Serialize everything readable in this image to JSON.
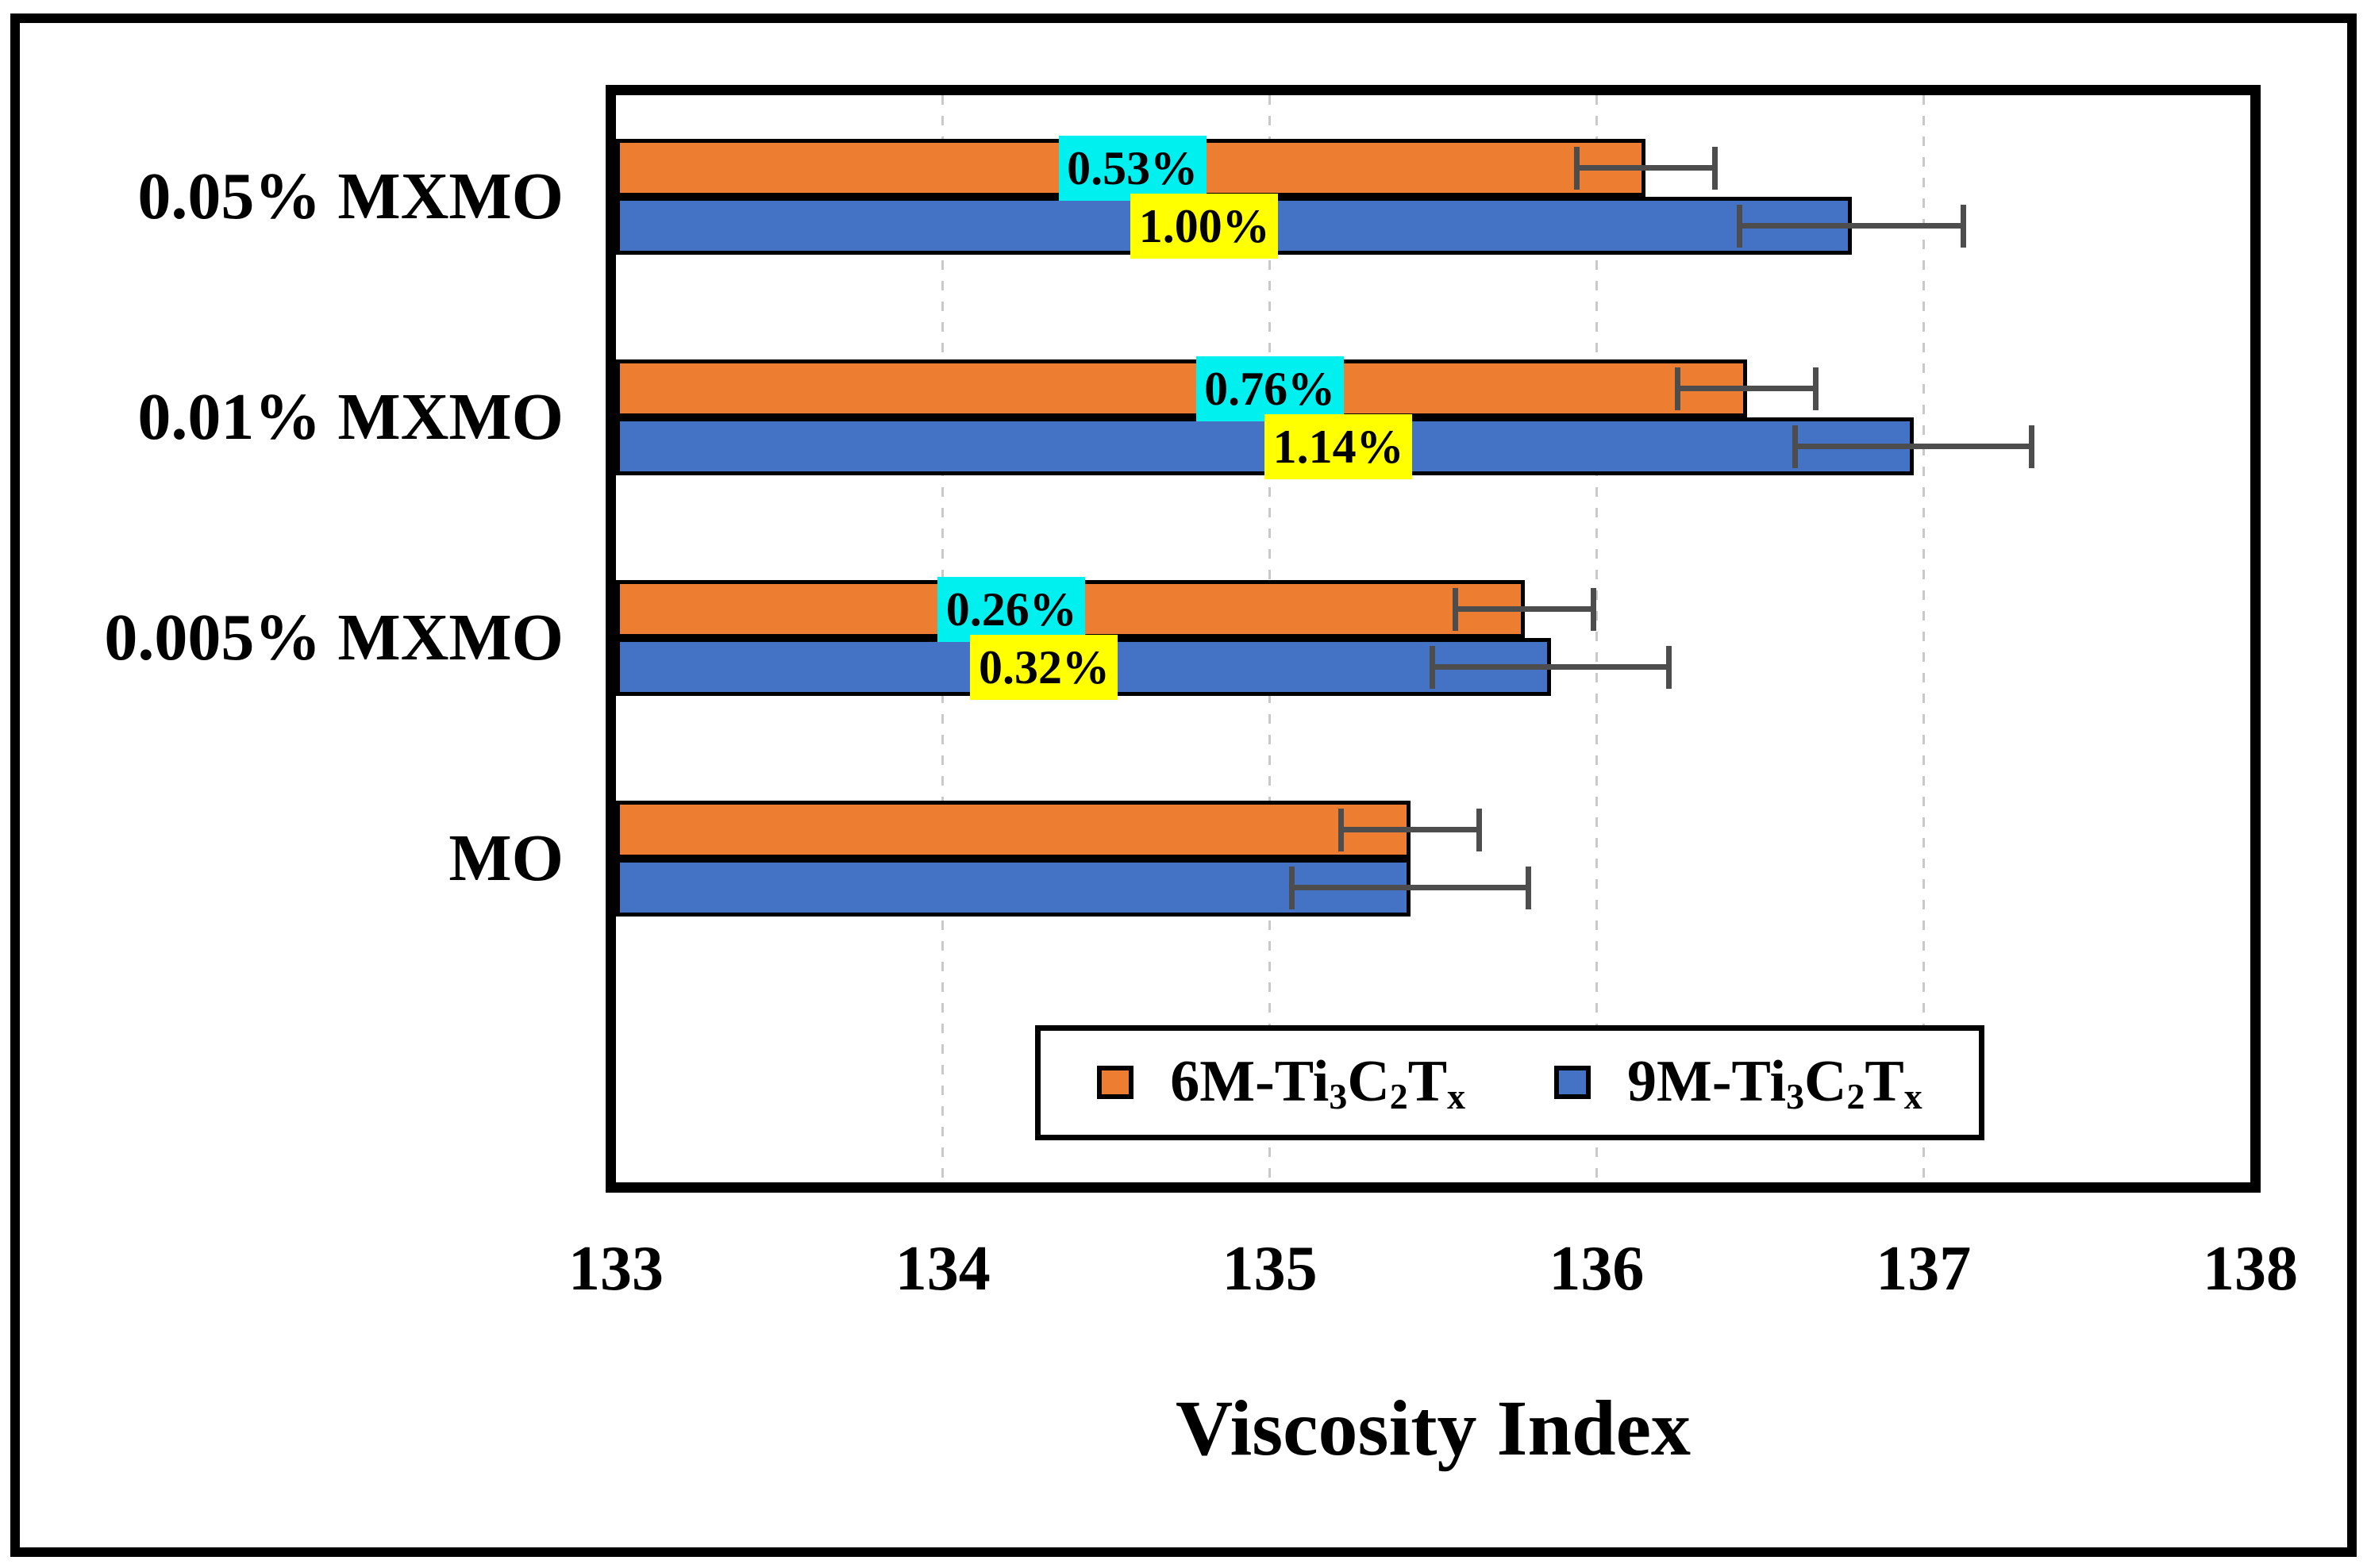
{
  "chart_data": {
    "type": "bar",
    "orientation": "horizontal",
    "xlabel": "Viscosity Index",
    "xlim": [
      133,
      138
    ],
    "x_ticks": [
      "133",
      "134",
      "135",
      "136",
      "137",
      "138"
    ],
    "grid": "vertical-dashed",
    "gridline_color": "#C9C9C9",
    "error_bar_color": "#4D4D4D",
    "bar_border_color": "#000000",
    "categories": [
      "0.05% MXMO",
      "0.01% MXMO",
      "0.005% MXMO",
      "MO"
    ],
    "series": [
      {
        "id": "6m",
        "name": "6M-Ti3C2Tx",
        "color": "#ED7D31",
        "values": [
          136.15,
          136.46,
          135.78,
          135.43
        ],
        "errors": [
          0.22,
          0.22,
          0.22,
          0.22
        ],
        "bar_labels": [
          "0.53%",
          "0.76%",
          "0.26%",
          ""
        ],
        "bar_label_bg": "#00EFEF",
        "bar_label_x": [
          134.58,
          135.0,
          134.21,
          null
        ]
      },
      {
        "id": "9m",
        "name": "9M-Ti3C2Tx",
        "color": "#4472C4",
        "values": [
          136.78,
          136.97,
          135.86,
          135.43
        ],
        "errors": [
          0.35,
          0.37,
          0.37,
          0.37
        ],
        "bar_labels": [
          "1.00%",
          "1.14%",
          "0.32%",
          ""
        ],
        "bar_label_bg": "#FFFF00",
        "bar_label_x": [
          134.8,
          135.21,
          134.31,
          null
        ]
      }
    ],
    "legend": {
      "position": "inside-bottom-center",
      "items": [
        {
          "series": "6m",
          "color": "#ED7D31",
          "label": "6M-Ti3C2Tx",
          "label_parts": [
            {
              "t": "6M-Ti"
            },
            {
              "t": "3",
              "sub": true
            },
            {
              "t": "C"
            },
            {
              "t": "2",
              "sub": true
            },
            {
              "t": "T"
            },
            {
              "t": "x",
              "sub": true
            }
          ]
        },
        {
          "series": "9m",
          "color": "#4472C4",
          "label": "9M-Ti3C2Tx",
          "label_parts": [
            {
              "t": "9M-Ti"
            },
            {
              "t": "3",
              "sub": true
            },
            {
              "t": "C"
            },
            {
              "t": "2",
              "sub": true
            },
            {
              "t": "T"
            },
            {
              "t": "x",
              "sub": true
            }
          ]
        }
      ]
    }
  }
}
